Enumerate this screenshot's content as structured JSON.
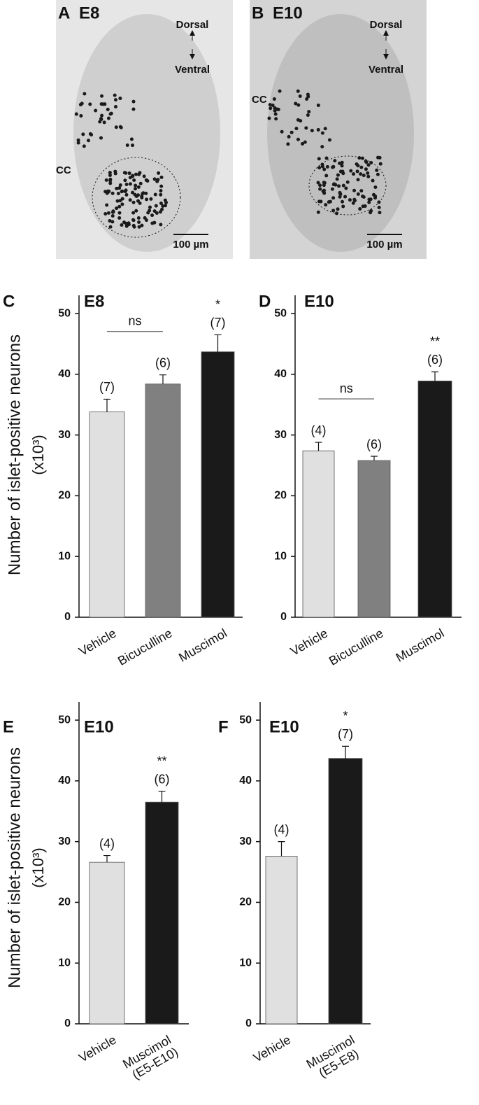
{
  "images": [
    {
      "label": "A",
      "title": "E8",
      "dorsal": "Dorsal",
      "ventral": "Ventral",
      "cc": "CC",
      "scale": "100 µm"
    },
    {
      "label": "B",
      "title": "E10",
      "dorsal": "Dorsal",
      "ventral": "Ventral",
      "cc": "CC",
      "scale": "100 µm"
    }
  ],
  "chart_data": [
    {
      "type": "bar",
      "panel": "C",
      "title": "E8",
      "ylabel": "Number of islet-positive neurons",
      "ylabel_unit": "(x10³)",
      "categories": [
        [
          "Vehicle"
        ],
        [
          "Bicuculline"
        ],
        [
          "Muscimol"
        ]
      ],
      "values": [
        33.8,
        38.4,
        43.7
      ],
      "errors": [
        2.1,
        1.5,
        2.8
      ],
      "colors": [
        "#e0e0e0",
        "#808080",
        "#1a1a1a"
      ],
      "n_labels": [
        "(7)",
        "(6)",
        "(7)"
      ],
      "brackets": [
        {
          "text": "ns",
          "from": 0,
          "to": 1
        }
      ],
      "significance": [
        {
          "text": "*",
          "category": 2
        }
      ],
      "ylim": [
        0,
        53
      ],
      "yticks": [
        0,
        10,
        20,
        30,
        40,
        50
      ]
    },
    {
      "type": "bar",
      "panel": "D",
      "title": "E10",
      "categories": [
        [
          "Vehicle"
        ],
        [
          "Bicuculline"
        ],
        [
          "Muscimol"
        ]
      ],
      "values": [
        27.4,
        25.8,
        38.9
      ],
      "errors": [
        1.4,
        0.7,
        1.5
      ],
      "colors": [
        "#e0e0e0",
        "#808080",
        "#1a1a1a"
      ],
      "n_labels": [
        "(4)",
        "(6)",
        "(6)"
      ],
      "brackets": [
        {
          "text": "ns",
          "from": 0,
          "to": 1
        }
      ],
      "significance": [
        {
          "text": "**",
          "category": 2
        }
      ],
      "ylim": [
        0,
        53
      ],
      "yticks": [
        0,
        10,
        20,
        30,
        40,
        50
      ]
    },
    {
      "type": "bar",
      "panel": "E",
      "title": "E10",
      "ylabel": "Number of islet-positive neurons",
      "ylabel_unit": "(x10³)",
      "categories": [
        [
          "Vehicle"
        ],
        [
          "Muscimol",
          "(E5-E10)"
        ]
      ],
      "values": [
        26.6,
        36.5
      ],
      "errors": [
        1.1,
        1.8
      ],
      "colors": [
        "#e0e0e0",
        "#1a1a1a"
      ],
      "n_labels": [
        "(4)",
        "(6)"
      ],
      "significance": [
        {
          "text": "**",
          "category": 1
        }
      ],
      "ylim": [
        0,
        53
      ],
      "yticks": [
        0,
        10,
        20,
        30,
        40,
        50
      ]
    },
    {
      "type": "bar",
      "panel": "F",
      "title": "E10",
      "categories": [
        [
          "Vehicle"
        ],
        [
          "Muscimol",
          "(E5-E8)"
        ]
      ],
      "values": [
        27.6,
        43.7
      ],
      "errors": [
        2.4,
        2.0
      ],
      "colors": [
        "#e0e0e0",
        "#1a1a1a"
      ],
      "n_labels": [
        "(4)",
        "(7)"
      ],
      "significance": [
        {
          "text": "*",
          "category": 1
        }
      ],
      "ylim": [
        0,
        53
      ],
      "yticks": [
        0,
        10,
        20,
        30,
        40,
        50
      ]
    }
  ]
}
